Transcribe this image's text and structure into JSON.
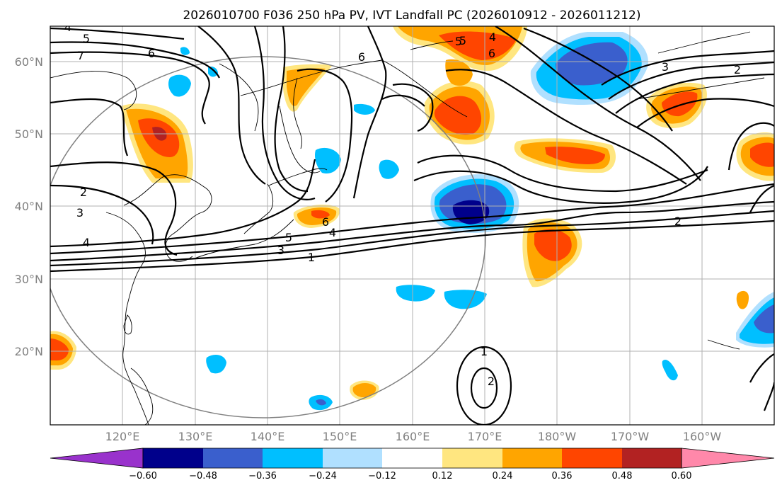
{
  "title": "2026010700 F036 250 hPa PV, IVT Landfall PC (2026010912 - 2026011212)",
  "lat_labels": [
    "60°N",
    "50°N",
    "40°N",
    "30°N",
    "20°N"
  ],
  "lon_labels": [
    "120°E",
    "130°E",
    "140°E",
    "150°E",
    "160°E",
    "170°E",
    "180°W",
    "170°W",
    "160°W"
  ],
  "colorbar": {
    "ticks": [
      "−0.60",
      "−0.48",
      "−0.36",
      "−0.24",
      "−0.12",
      "0.12",
      "0.24",
      "0.36",
      "0.48",
      "0.60"
    ],
    "colors": [
      "#9932cc",
      "#00008b",
      "#3a5fcd",
      "#00bfff",
      "#b0e0ff",
      "#ffffff",
      "#ffe680",
      "#ffa500",
      "#ff4500",
      "#b22222",
      "#ff88aa"
    ]
  },
  "contour_labels": [
    "4",
    "5",
    "7",
    "6",
    "6",
    "5",
    "4",
    "5",
    "6",
    "3",
    "2",
    "2",
    "3",
    "4",
    "6",
    "4",
    "5",
    "3",
    "1",
    "2",
    "1",
    "2"
  ],
  "colors": {
    "negative_dark": "#00008b",
    "negative_mid": "#3a5fcd",
    "negative_light": "#00bfff",
    "negative_pale": "#b0e0ff",
    "positive_pale": "#ffe680",
    "positive_light": "#ffa500",
    "positive_mid": "#ff4500"
  }
}
